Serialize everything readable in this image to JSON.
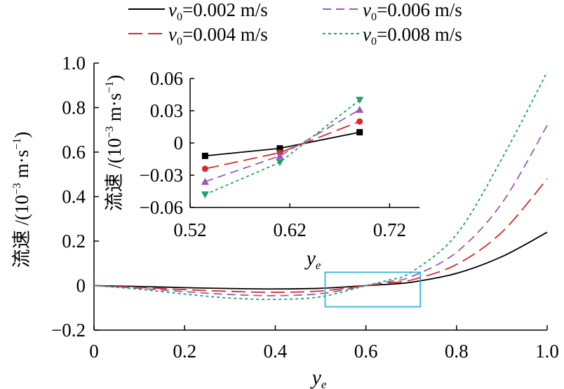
{
  "chart_data": {
    "main": {
      "type": "line",
      "xlabel": "y",
      "xlabel_sub": "e",
      "ylabel_prefix": "流速 /(10",
      "ylabel_exp": "−3",
      "ylabel_mid": " m·s",
      "ylabel_exp2": "−1",
      "ylabel_suffix": ")",
      "xlim": [
        0,
        1.0
      ],
      "ylim": [
        -0.2,
        1.0
      ],
      "xticks": [
        "0",
        "0.2",
        "0.4",
        "0.6",
        "0.8",
        "1.0"
      ],
      "xtick_values": [
        0,
        0.2,
        0.4,
        0.6,
        0.8,
        1.0
      ],
      "yticks": [
        "−0.2",
        "0",
        "0.2",
        "0.4",
        "0.6",
        "0.8",
        "1.0"
      ],
      "ytick_values": [
        -0.2,
        0,
        0.2,
        0.4,
        0.6,
        0.8,
        1.0
      ],
      "x": [
        0,
        0.1,
        0.2,
        0.3,
        0.4,
        0.5,
        0.6,
        0.65,
        0.7,
        0.8,
        0.9,
        1.0
      ],
      "series": [
        {
          "name": "v0=0.002 m/s",
          "values": [
            0,
            -0.004,
            -0.009,
            -0.013,
            -0.015,
            -0.012,
            0.0,
            0.006,
            0.015,
            0.055,
            0.13,
            0.24
          ]
        },
        {
          "name": "v0=0.004 m/s",
          "values": [
            0,
            -0.008,
            -0.018,
            -0.026,
            -0.03,
            -0.024,
            0.0,
            0.012,
            0.025,
            0.095,
            0.24,
            0.48
          ]
        },
        {
          "name": "v0=0.006 m/s",
          "values": [
            0,
            -0.012,
            -0.027,
            -0.04,
            -0.045,
            -0.036,
            0.0,
            0.018,
            0.04,
            0.15,
            0.37,
            0.72
          ]
        },
        {
          "name": "v0=0.008 m/s",
          "values": [
            0,
            -0.016,
            -0.038,
            -0.056,
            -0.062,
            -0.05,
            0.0,
            0.025,
            0.06,
            0.23,
            0.57,
            0.96
          ]
        }
      ],
      "zoom_box": {
        "x": [
          0.51,
          0.72
        ],
        "y": [
          -0.095,
          0.06
        ]
      }
    },
    "inset": {
      "type": "line",
      "xlabel": "y",
      "xlabel_sub": "e",
      "ylabel_prefix": "流速 /(10",
      "ylabel_exp": "−3",
      "ylabel_mid": " m·s",
      "ylabel_exp2": "−1",
      "ylabel_suffix": ")",
      "xlim": [
        0.52,
        0.75
      ],
      "ylim": [
        -0.06,
        0.06
      ],
      "xticks": [
        "0.52",
        "0.62",
        "0.72"
      ],
      "xtick_values": [
        0.52,
        0.62,
        0.72
      ],
      "yticks": [
        "−0.06",
        "−0.03",
        "0",
        "0.03",
        "0.06"
      ],
      "ytick_values": [
        -0.06,
        -0.03,
        0,
        0.03,
        0.06
      ],
      "x": [
        0.535,
        0.61,
        0.69
      ],
      "series": [
        {
          "name": "v0=0.002 m/s",
          "marker": "square",
          "values": [
            -0.012,
            -0.005,
            0.01
          ]
        },
        {
          "name": "v0=0.004 m/s",
          "marker": "circle",
          "values": [
            -0.024,
            -0.009,
            0.02
          ]
        },
        {
          "name": "v0=0.006 m/s",
          "marker": "triangle-up",
          "values": [
            -0.036,
            -0.012,
            0.031
          ]
        },
        {
          "name": "v0=0.008 m/s",
          "marker": "triangle-down",
          "values": [
            -0.048,
            -0.018,
            0.04
          ]
        }
      ]
    },
    "legend": [
      {
        "sym": "v",
        "sub": "0",
        "text": "=0.002 m/s"
      },
      {
        "sym": "v",
        "sub": "0",
        "text": "=0.006 m/s"
      },
      {
        "sym": "v",
        "sub": "0",
        "text": "=0.004 m/s"
      },
      {
        "sym": "v",
        "sub": "0",
        "text": "=0.008 m/s"
      }
    ],
    "legend_placement": "top",
    "series_styles": [
      {
        "color": "#000000",
        "dash": ""
      },
      {
        "color": "#d42a2a",
        "dash": "20 8"
      },
      {
        "color": "#9b59b6",
        "dash": "12 7"
      },
      {
        "color": "#1aa36a",
        "dash": "4 4"
      }
    ],
    "zoom_box_color": "#33b6d9"
  }
}
